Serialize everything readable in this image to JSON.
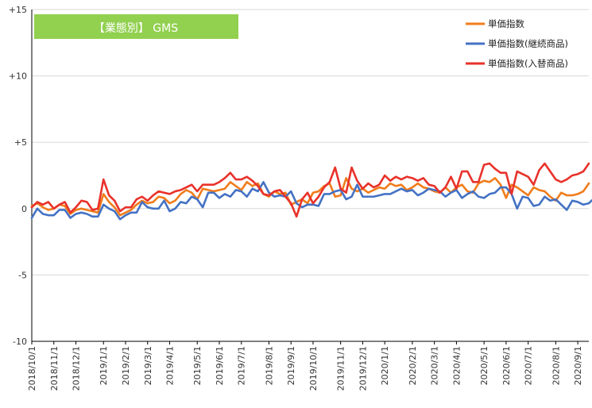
{
  "chart_data": {
    "type": "line",
    "title": "【業態別】 GMS",
    "title_bg": "#92d050",
    "y_ticks": [
      {
        "value": 15,
        "label": "+15"
      },
      {
        "value": 10,
        "label": "+10"
      },
      {
        "value": 5,
        "label": "+5"
      },
      {
        "value": 0,
        "label": "0"
      },
      {
        "value": -5,
        "label": "-5"
      },
      {
        "value": -10,
        "label": "-10"
      }
    ],
    "ylim": [
      -10,
      15
    ],
    "grid": "horizontal",
    "legend_position": "top-right",
    "x_ticks": [
      {
        "index": 0,
        "label": "2018/10/1"
      },
      {
        "index": 4,
        "label": "2018/11/1"
      },
      {
        "index": 8,
        "label": "2018/12/1"
      },
      {
        "index": 13,
        "label": "2019/1/1"
      },
      {
        "index": 17,
        "label": "2019/2/1"
      },
      {
        "index": 21,
        "label": "2019/3/1"
      },
      {
        "index": 25,
        "label": "2019/4/1"
      },
      {
        "index": 30,
        "label": "2019/5/1"
      },
      {
        "index": 34,
        "label": "2019/6/1"
      },
      {
        "index": 38,
        "label": "2019/7/1"
      },
      {
        "index": 43,
        "label": "2019/8/1"
      },
      {
        "index": 47,
        "label": "2019/9/1"
      },
      {
        "index": 51,
        "label": "2019/10/1"
      },
      {
        "index": 56,
        "label": "2019/11/1"
      },
      {
        "index": 60,
        "label": "2019/12/1"
      },
      {
        "index": 64,
        "label": "2020/1/1"
      },
      {
        "index": 69,
        "label": "2020/2/1"
      },
      {
        "index": 73,
        "label": "2020/3/1"
      },
      {
        "index": 77,
        "label": "2020/4/1"
      },
      {
        "index": 82,
        "label": "2020/5/1"
      },
      {
        "index": 86,
        "label": "2020/6/1"
      },
      {
        "index": 90,
        "label": "2020/7/1"
      },
      {
        "index": 95,
        "label": "2020/8/1"
      },
      {
        "index": 99,
        "label": "2020/9/1"
      }
    ],
    "x_count": 102,
    "series": [
      {
        "name": "単価指数",
        "color": "#f07c1b",
        "values": [
          0.2,
          0.4,
          0.1,
          -0.1,
          0.0,
          0.3,
          0.2,
          -0.4,
          -0.1,
          0.0,
          -0.1,
          -0.2,
          -0.3,
          1.1,
          0.5,
          0.1,
          -0.5,
          -0.3,
          -0.1,
          0.3,
          0.6,
          0.4,
          0.5,
          0.9,
          0.8,
          0.4,
          0.6,
          1.1,
          1.4,
          1.2,
          0.7,
          1.5,
          1.4,
          1.3,
          1.4,
          1.5,
          2.0,
          1.7,
          1.4,
          2.0,
          1.7,
          1.9,
          1.1,
          0.9,
          1.3,
          1.1,
          1.2,
          0.3,
          0.5,
          0.7,
          0.4,
          1.2,
          1.3,
          1.7,
          1.9,
          0.9,
          1.0,
          2.3,
          1.5,
          1.3,
          1.5,
          1.2,
          1.4,
          1.6,
          1.5,
          1.9,
          1.7,
          1.8,
          1.4,
          1.6,
          1.9,
          1.6,
          1.5,
          1.3,
          1.2,
          1.6,
          1.2,
          1.6,
          1.8,
          1.3,
          1.2,
          1.9,
          2.1,
          2.0,
          2.3,
          1.8,
          0.8,
          1.8,
          1.6,
          1.3,
          1.0,
          1.6,
          1.4,
          1.3,
          0.9,
          0.6,
          1.2,
          1.0,
          1.0,
          1.1,
          1.3,
          1.9
        ]
      },
      {
        "name": "単価指数(継続商品)",
        "color": "#4472c4",
        "values": [
          -0.7,
          0.0,
          -0.4,
          -0.5,
          -0.5,
          -0.1,
          -0.1,
          -0.7,
          -0.4,
          -0.3,
          -0.4,
          -0.6,
          -0.6,
          0.3,
          0.0,
          -0.2,
          -0.8,
          -0.5,
          -0.3,
          -0.3,
          0.5,
          0.1,
          0.0,
          0.0,
          0.6,
          -0.2,
          0.0,
          0.5,
          0.4,
          0.9,
          0.7,
          0.1,
          1.2,
          1.2,
          0.8,
          1.1,
          0.9,
          1.4,
          1.3,
          0.9,
          1.5,
          1.3,
          2.0,
          1.2,
          0.9,
          1.0,
          0.9,
          1.3,
          0.4,
          0.1,
          0.3,
          0.3,
          0.2,
          1.1,
          1.1,
          1.3,
          1.4,
          0.7,
          0.9,
          1.8,
          0.9,
          0.9,
          0.9,
          1.0,
          1.1,
          1.1,
          1.3,
          1.5,
          1.3,
          1.4,
          1.0,
          1.2,
          1.5,
          1.4,
          1.3,
          0.9,
          1.2,
          1.4,
          0.8,
          1.1,
          1.3,
          0.9,
          0.8,
          1.1,
          1.2,
          1.6,
          1.6,
          1.1,
          0.0,
          0.9,
          0.8,
          0.2,
          0.3,
          0.9,
          0.6,
          0.7,
          0.3,
          -0.1,
          0.6,
          0.5,
          0.3,
          0.4,
          0.8,
          1.3
        ]
      },
      {
        "name": "単価指数(入替商品)",
        "color": "#e8322a",
        "values": [
          0.1,
          0.5,
          0.3,
          0.5,
          0.0,
          0.3,
          0.5,
          -0.3,
          0.1,
          0.6,
          0.5,
          -0.1,
          0.0,
          2.2,
          1.0,
          0.6,
          -0.2,
          0.1,
          0.1,
          0.7,
          0.9,
          0.6,
          1.0,
          1.3,
          1.2,
          1.1,
          1.3,
          1.4,
          1.6,
          1.8,
          1.3,
          1.8,
          1.8,
          1.8,
          2.0,
          2.3,
          2.7,
          2.2,
          2.2,
          2.4,
          2.1,
          1.7,
          1.1,
          1.0,
          1.3,
          1.4,
          0.9,
          0.4,
          -0.6,
          0.7,
          1.2,
          0.4,
          0.9,
          1.6,
          2.0,
          3.1,
          1.5,
          1.2,
          3.1,
          2.1,
          1.5,
          1.9,
          1.6,
          1.8,
          2.5,
          2.1,
          2.4,
          2.2,
          2.4,
          2.3,
          2.1,
          2.3,
          1.8,
          1.7,
          1.2,
          1.6,
          2.4,
          1.5,
          2.8,
          2.8,
          2.0,
          2.0,
          3.3,
          3.4,
          3.0,
          2.7,
          2.7,
          1.1,
          2.8,
          2.6,
          2.4,
          1.8,
          2.9,
          3.4,
          2.8,
          2.2,
          2.0,
          2.2,
          2.5,
          2.6,
          2.8,
          3.4
        ]
      }
    ]
  }
}
